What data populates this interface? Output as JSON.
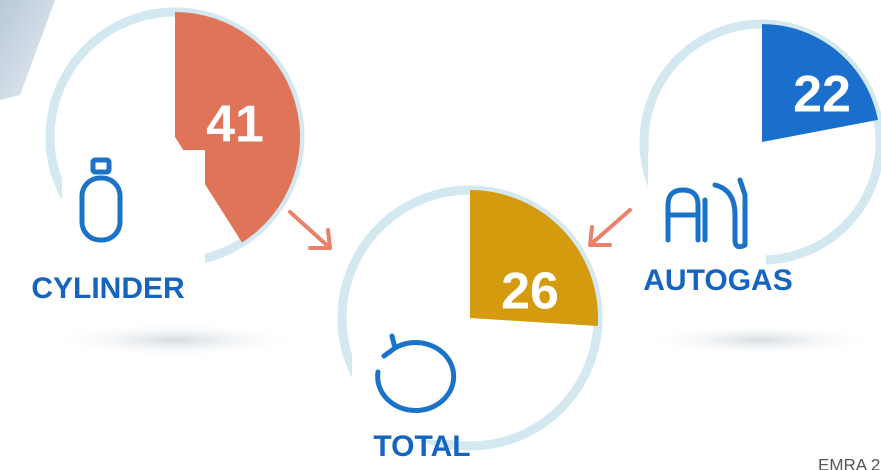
{
  "items": [
    {
      "label": "CYLINDER",
      "value": 41,
      "color": "#e07459"
    },
    {
      "label": "AUTOGAS",
      "value": 22,
      "color": "#1a6fcc"
    },
    {
      "label": "TOTAL",
      "value": 26,
      "color": "#d49b0f"
    }
  ],
  "footer": "EMRA 2"
}
